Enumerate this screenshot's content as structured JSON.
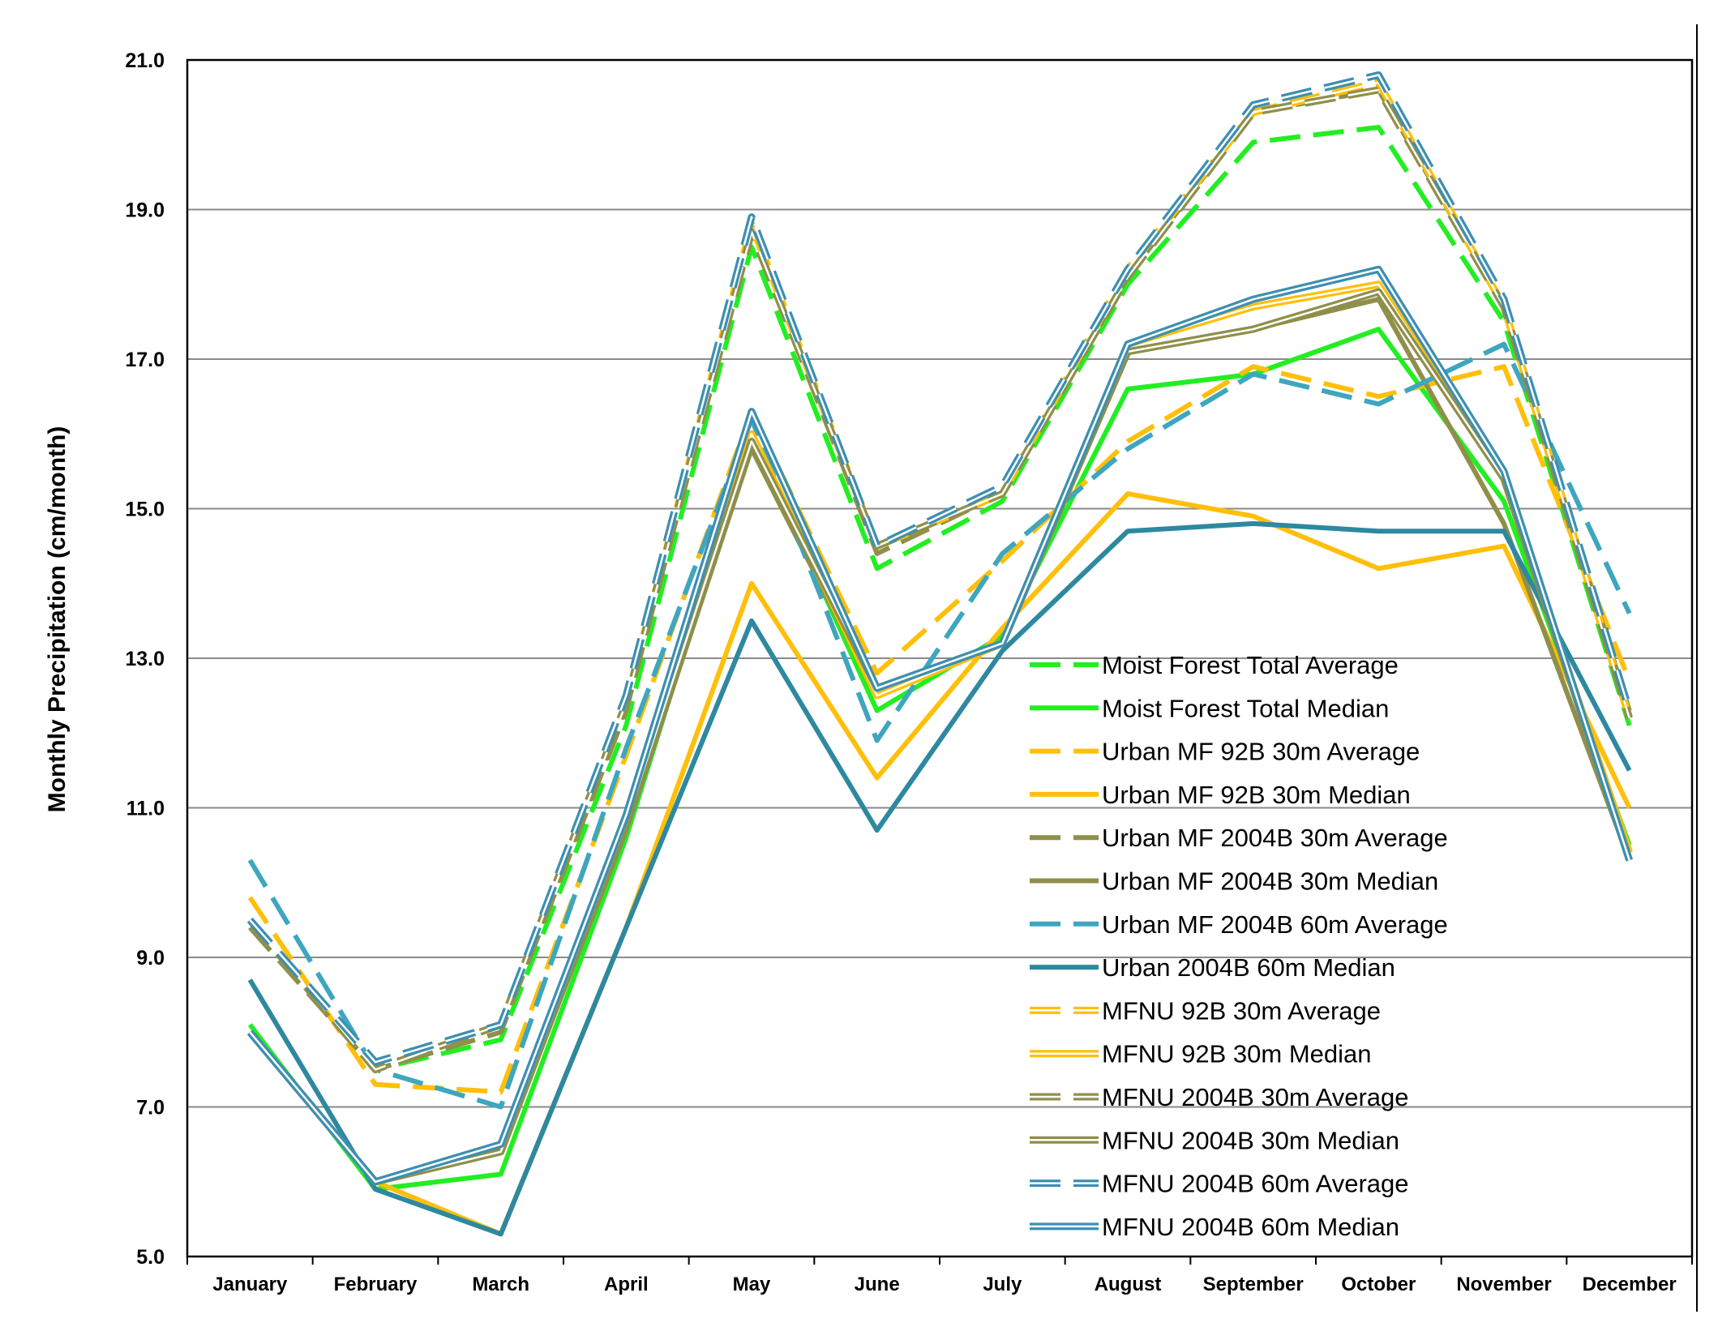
{
  "chart_data": {
    "type": "line",
    "title": "",
    "xlabel": "",
    "ylabel": "Monthly Precipitation (cm/month)",
    "ylim": [
      5.0,
      21.0
    ],
    "yticks": [
      "5.0",
      "7.0",
      "9.0",
      "11.0",
      "13.0",
      "15.0",
      "17.0",
      "19.0",
      "21.0"
    ],
    "grid": true,
    "legend_position": "bottom-right",
    "categories": [
      "January",
      "February",
      "March",
      "April",
      "May",
      "June",
      "July",
      "August",
      "September",
      "October",
      "November",
      "December"
    ],
    "series": [
      {
        "name": "Moist Forest Total Average",
        "color": "#22ee22",
        "style": "dashed-bold",
        "values": [
          9.5,
          7.5,
          7.9,
          12.1,
          18.5,
          14.2,
          15.1,
          18.0,
          19.9,
          20.1,
          17.5,
          12.1
        ]
      },
      {
        "name": "Moist Forest Total Median",
        "color": "#22ee22",
        "style": "solid-bold",
        "values": [
          8.1,
          5.9,
          6.1,
          10.6,
          16.0,
          12.3,
          13.3,
          16.6,
          16.8,
          17.4,
          15.1,
          10.5
        ]
      },
      {
        "name": "Urban MF 92B 30m Average",
        "color": "#ffbf0a",
        "style": "dashed-bold",
        "values": [
          9.8,
          7.3,
          7.2,
          11.7,
          16.3,
          12.8,
          14.3,
          15.9,
          16.9,
          16.5,
          16.9,
          12.7
        ]
      },
      {
        "name": "Urban MF 92B 30m Median",
        "color": "#ffbf0a",
        "style": "solid-bold",
        "values": [
          8.0,
          6.0,
          5.3,
          9.4,
          14.0,
          11.4,
          13.4,
          15.2,
          14.9,
          14.2,
          14.5,
          11.0
        ]
      },
      {
        "name": "Urban MF 2004B 30m Average",
        "color": "#8f8f4a",
        "style": "dashed-bold",
        "values": [
          9.4,
          7.5,
          8.0,
          12.3,
          18.7,
          14.4,
          15.2,
          18.1,
          20.3,
          20.6,
          17.7,
          12.3
        ]
      },
      {
        "name": "Urban MF 2004B 30m Median",
        "color": "#8f8f4a",
        "style": "solid-bold",
        "values": [
          8.0,
          6.0,
          6.4,
          10.7,
          15.8,
          12.5,
          13.2,
          17.1,
          17.4,
          17.8,
          14.8,
          10.3
        ]
      },
      {
        "name": "Urban MF 2004B 60m Average",
        "color": "#3ea6bf",
        "style": "dashed-bold",
        "values": [
          10.3,
          7.5,
          7.0,
          11.8,
          16.2,
          11.9,
          14.4,
          15.8,
          16.8,
          16.4,
          17.2,
          13.6
        ]
      },
      {
        "name": "Urban 2004B 60m Median",
        "color": "#2e88a0",
        "style": "solid-bold",
        "values": [
          8.7,
          5.9,
          5.3,
          9.4,
          13.5,
          10.7,
          13.1,
          14.7,
          14.8,
          14.7,
          14.7,
          11.5
        ]
      },
      {
        "name": "MFNU 92B 30m Average",
        "color": "#ffbf0a",
        "style": "dashed-double",
        "values": [
          9.5,
          7.5,
          8.1,
          12.4,
          18.8,
          14.5,
          15.2,
          18.2,
          20.3,
          20.7,
          17.7,
          12.2
        ]
      },
      {
        "name": "MFNU 92B 30m Median",
        "color": "#ffbf0a",
        "style": "solid-double",
        "values": [
          8.0,
          6.0,
          6.4,
          10.9,
          16.0,
          12.5,
          13.2,
          17.2,
          17.7,
          18.0,
          15.4,
          10.4
        ]
      },
      {
        "name": "MFNU 2004B 30m Average",
        "color": "#8f8f4a",
        "style": "dashed-double",
        "values": [
          9.5,
          7.5,
          8.1,
          12.4,
          18.7,
          14.5,
          15.2,
          18.1,
          20.3,
          20.6,
          17.7,
          12.2
        ]
      },
      {
        "name": "MFNU 2004B 30m Median",
        "color": "#8f8f4a",
        "style": "solid-double",
        "values": [
          8.0,
          6.0,
          6.4,
          10.8,
          15.9,
          12.6,
          13.2,
          17.1,
          17.4,
          17.9,
          15.4,
          10.3
        ]
      },
      {
        "name": "MFNU 2004B 60m Average",
        "color": "#3d8fb0",
        "style": "dashed-double",
        "values": [
          9.5,
          7.6,
          8.1,
          12.5,
          18.9,
          14.5,
          15.3,
          18.2,
          20.4,
          20.8,
          17.8,
          12.3
        ]
      },
      {
        "name": "MFNU 2004B 60m Median",
        "color": "#3d8fb0",
        "style": "solid-double",
        "values": [
          8.0,
          6.0,
          6.5,
          10.9,
          16.3,
          12.6,
          13.2,
          17.2,
          17.8,
          18.2,
          15.5,
          10.3
        ]
      }
    ]
  }
}
